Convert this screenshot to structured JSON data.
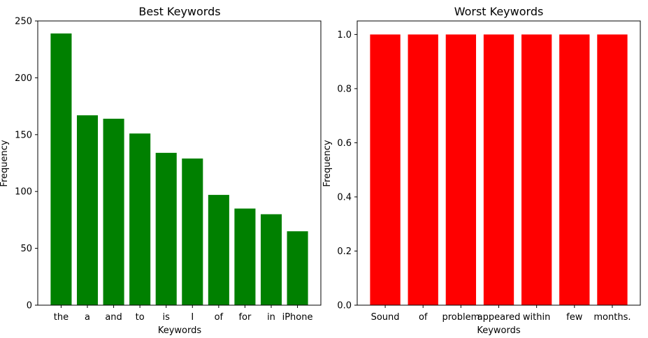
{
  "chart_data": [
    {
      "type": "bar",
      "title": "Best Keywords",
      "xlabel": "Keywords",
      "ylabel": "Frequency",
      "categories": [
        "the",
        "a",
        "and",
        "to",
        "is",
        "I",
        "of",
        "for",
        "in",
        "iPhone"
      ],
      "values": [
        239,
        167,
        164,
        151,
        134,
        129,
        97,
        85,
        80,
        65
      ],
      "ylim": [
        0,
        250
      ],
      "yticks": [
        0,
        50,
        100,
        150,
        200,
        250
      ],
      "ytick_labels": [
        "0",
        "50",
        "100",
        "150",
        "200",
        "250"
      ],
      "color": "#008000",
      "grid": false
    },
    {
      "type": "bar",
      "title": "Worst Keywords",
      "xlabel": "Keywords",
      "ylabel": "Frequency",
      "categories": [
        "Sound",
        "of",
        "problem",
        "appeared",
        "within",
        "few",
        "months."
      ],
      "values": [
        1,
        1,
        1,
        1,
        1,
        1,
        1
      ],
      "ylim": [
        0,
        1.05
      ],
      "yticks": [
        0,
        0.2,
        0.4,
        0.6,
        0.8,
        1.0
      ],
      "ytick_labels": [
        "0.0",
        "0.2",
        "0.4",
        "0.6",
        "0.8",
        "1.0"
      ],
      "color": "#ff0000",
      "grid": false
    }
  ]
}
